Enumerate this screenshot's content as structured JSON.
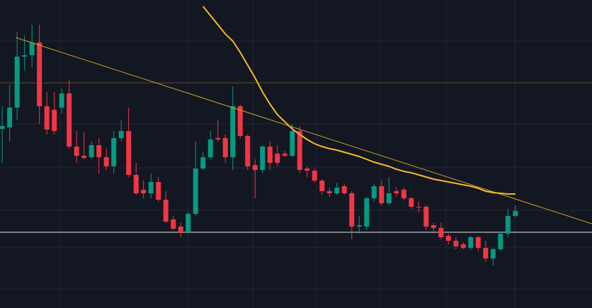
{
  "chart_data": {
    "type": "candlestick",
    "xlim": [
      -0.3,
      79.3
    ],
    "ylim": [
      0,
      435
    ],
    "up_color": "#089981",
    "down_color": "#f23645",
    "open": [
      253,
      255,
      283,
      355,
      357,
      375,
      285,
      280,
      283,
      303,
      228,
      215,
      213,
      230,
      213,
      200,
      240,
      250,
      188,
      167,
      162,
      178,
      153,
      125,
      115,
      107,
      133,
      197,
      213,
      240,
      240,
      213,
      285,
      243,
      202,
      195,
      228,
      218,
      218,
      215,
      250,
      197,
      194,
      180,
      165,
      162,
      172,
      162,
      115,
      115,
      155,
      172,
      148,
      165,
      167,
      155,
      143,
      143,
      117,
      113,
      102,
      95,
      90,
      85,
      100,
      85,
      70,
      83,
      105,
      130
    ],
    "high": [
      285,
      315,
      390,
      385,
      400,
      400,
      305,
      305,
      310,
      322,
      250,
      248,
      235,
      240,
      225,
      250,
      265,
      283,
      205,
      180,
      190,
      185,
      165,
      130,
      120,
      135,
      235,
      220,
      250,
      265,
      245,
      313,
      287,
      245,
      210,
      230,
      235,
      230,
      222,
      260,
      257,
      200,
      197,
      182,
      170,
      177,
      175,
      165,
      130,
      157,
      175,
      180,
      185,
      170,
      170,
      157,
      150,
      145,
      120,
      120,
      105,
      100,
      93,
      102,
      102,
      95,
      85,
      107,
      140,
      145
    ],
    "low": [
      205,
      235,
      265,
      335,
      340,
      260,
      245,
      245,
      275,
      225,
      205,
      210,
      210,
      190,
      195,
      190,
      235,
      185,
      160,
      155,
      155,
      150,
      120,
      110,
      100,
      105,
      130,
      195,
      210,
      235,
      205,
      195,
      240,
      195,
      155,
      190,
      195,
      200,
      213,
      213,
      190,
      185,
      177,
      160,
      157,
      160,
      160,
      97,
      105,
      110,
      150,
      145,
      145,
      157,
      152,
      140,
      135,
      110,
      105,
      97,
      90,
      83,
      83,
      82,
      80,
      65,
      60,
      80,
      100,
      128
    ],
    "close": [
      257,
      283,
      355,
      357,
      375,
      285,
      252,
      250,
      303,
      228,
      215,
      212,
      230,
      213,
      200,
      240,
      250,
      188,
      162,
      162,
      178,
      153,
      122,
      112,
      107,
      133,
      197,
      213,
      238,
      238,
      213,
      285,
      243,
      200,
      195,
      228,
      205,
      205,
      215,
      250,
      195,
      194,
      180,
      165,
      162,
      170,
      162,
      115,
      117,
      155,
      172,
      148,
      162,
      162,
      155,
      143,
      142,
      115,
      113,
      100,
      95,
      87,
      85,
      100,
      85,
      70,
      83,
      105,
      130,
      137
    ],
    "moving_average": {
      "color": "#f5b82e",
      "values": [
        null,
        null,
        null,
        null,
        null,
        null,
        null,
        null,
        null,
        null,
        null,
        null,
        null,
        null,
        null,
        null,
        null,
        null,
        null,
        null,
        null,
        null,
        null,
        null,
        null,
        null,
        null,
        426,
        413,
        400,
        387,
        377,
        361,
        343,
        325,
        305,
        288,
        273,
        263,
        253,
        245,
        238,
        232,
        228,
        225,
        223,
        220,
        217,
        214,
        210,
        206,
        203,
        200,
        196,
        193,
        191,
        188,
        185,
        182,
        180,
        178,
        176,
        174,
        172,
        169,
        165,
        163,
        162,
        161,
        161
      ]
    },
    "trendline": {
      "color": "#c9a227",
      "x": [
        1.8,
        79.3
      ],
      "values": [
        382,
        119
      ]
    },
    "hlines": [
      {
        "value": 318,
        "color": "#5d4a36"
      },
      {
        "value": 138,
        "color": "#4a4e5a",
        "dotted": true
      },
      {
        "value": 107,
        "color": "#e0e3eb"
      }
    ]
  }
}
